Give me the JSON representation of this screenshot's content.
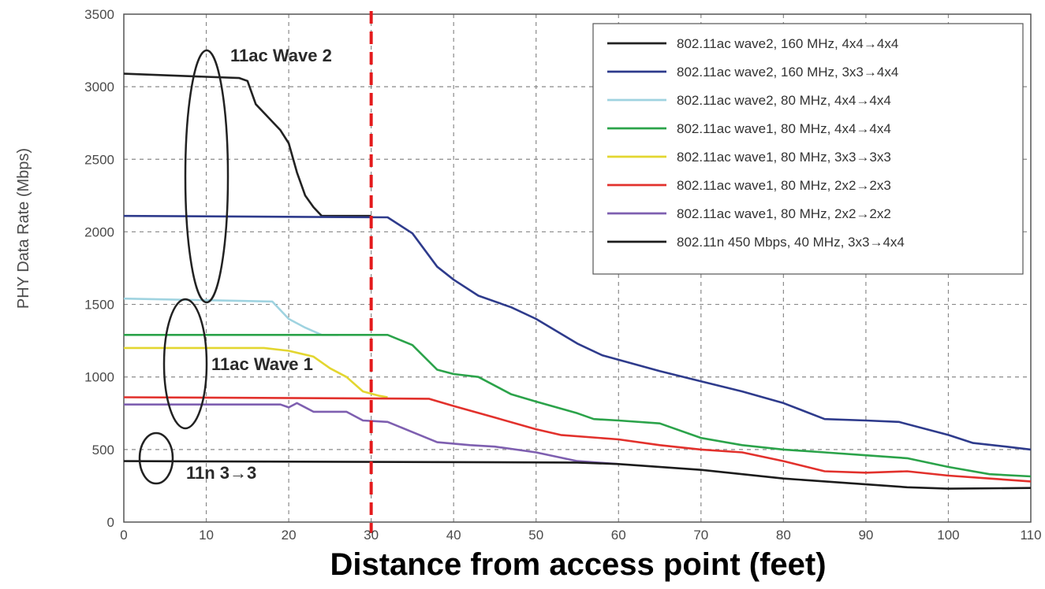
{
  "chart_data": {
    "type": "line",
    "title": "",
    "xlabel": "Distance from access point (feet)",
    "ylabel": "PHY Data Rate (Mbps)",
    "xlim": [
      0,
      110
    ],
    "ylim": [
      0,
      3500
    ],
    "xticks": [
      0,
      10,
      20,
      30,
      40,
      50,
      60,
      70,
      80,
      90,
      100,
      110
    ],
    "yticks": [
      0,
      500,
      1000,
      1500,
      2000,
      2500,
      3000,
      3500
    ],
    "grid": true,
    "legend_position": "top-right",
    "series": [
      {
        "name": "802.11ac wave2, 160 MHz, 4x4→4x4",
        "color": "#222222",
        "points": [
          [
            0,
            3090
          ],
          [
            14,
            3060
          ],
          [
            15,
            3040
          ],
          [
            16,
            2880
          ],
          [
            18,
            2760
          ],
          [
            19,
            2700
          ],
          [
            20,
            2610
          ],
          [
            21,
            2410
          ],
          [
            22,
            2250
          ],
          [
            23,
            2170
          ],
          [
            24,
            2110
          ],
          [
            30,
            2110
          ]
        ]
      },
      {
        "name": "802.11ac wave2, 160 MHz, 3x3→4x4",
        "color": "#2e3b8c",
        "points": [
          [
            0,
            2110
          ],
          [
            32,
            2100
          ],
          [
            35,
            1990
          ],
          [
            38,
            1760
          ],
          [
            40,
            1670
          ],
          [
            43,
            1560
          ],
          [
            47,
            1480
          ],
          [
            50,
            1400
          ],
          [
            55,
            1230
          ],
          [
            58,
            1150
          ],
          [
            65,
            1040
          ],
          [
            70,
            970
          ],
          [
            75,
            900
          ],
          [
            80,
            820
          ],
          [
            85,
            710
          ],
          [
            90,
            700
          ],
          [
            94,
            690
          ],
          [
            100,
            600
          ],
          [
            103,
            545
          ],
          [
            107,
            520
          ],
          [
            110,
            500
          ]
        ]
      },
      {
        "name": "802.11ac wave2, 80 MHz, 4x4→4x4",
        "color": "#9fd3e0",
        "points": [
          [
            0,
            1540
          ],
          [
            18,
            1520
          ],
          [
            20,
            1400
          ],
          [
            22,
            1340
          ],
          [
            24,
            1290
          ],
          [
            26,
            1290
          ]
        ]
      },
      {
        "name": "802.11ac wave1, 80 MHz, 4x4→4x4",
        "color": "#2ba34a",
        "points": [
          [
            0,
            1290
          ],
          [
            32,
            1290
          ],
          [
            35,
            1220
          ],
          [
            38,
            1050
          ],
          [
            40,
            1020
          ],
          [
            43,
            1000
          ],
          [
            47,
            880
          ],
          [
            50,
            830
          ],
          [
            55,
            750
          ],
          [
            57,
            710
          ],
          [
            60,
            700
          ],
          [
            65,
            680
          ],
          [
            70,
            580
          ],
          [
            75,
            530
          ],
          [
            80,
            500
          ],
          [
            85,
            480
          ],
          [
            90,
            460
          ],
          [
            95,
            440
          ],
          [
            100,
            380
          ],
          [
            105,
            330
          ],
          [
            110,
            315
          ]
        ]
      },
      {
        "name": "802.11ac wave1, 80 MHz, 3x3→3x3",
        "color": "#e3d630",
        "points": [
          [
            0,
            1200
          ],
          [
            17,
            1200
          ],
          [
            20,
            1180
          ],
          [
            23,
            1140
          ],
          [
            25,
            1060
          ],
          [
            27,
            1000
          ],
          [
            29,
            900
          ],
          [
            31,
            870
          ],
          [
            32,
            860
          ]
        ]
      },
      {
        "name": "802.11ac wave1, 80 MHz, 2x2→2x3",
        "color": "#e2312c",
        "points": [
          [
            0,
            860
          ],
          [
            37,
            850
          ],
          [
            40,
            800
          ],
          [
            45,
            720
          ],
          [
            50,
            640
          ],
          [
            53,
            600
          ],
          [
            60,
            570
          ],
          [
            65,
            530
          ],
          [
            70,
            500
          ],
          [
            75,
            480
          ],
          [
            80,
            420
          ],
          [
            85,
            350
          ],
          [
            90,
            340
          ],
          [
            95,
            350
          ],
          [
            100,
            320
          ],
          [
            105,
            300
          ],
          [
            110,
            280
          ]
        ]
      },
      {
        "name": "802.11ac wave1, 80 MHz, 2x2→2x2",
        "color": "#7e5fb0",
        "points": [
          [
            0,
            810
          ],
          [
            19,
            810
          ],
          [
            20,
            790
          ],
          [
            21,
            820
          ],
          [
            23,
            760
          ],
          [
            27,
            760
          ],
          [
            29,
            700
          ],
          [
            32,
            690
          ],
          [
            35,
            620
          ],
          [
            38,
            550
          ],
          [
            42,
            530
          ],
          [
            45,
            520
          ],
          [
            50,
            480
          ],
          [
            55,
            420
          ],
          [
            60,
            400
          ]
        ]
      },
      {
        "name": "802.11n 450 Mbps, 40 MHz, 3x3→4x4",
        "color": "#1c1c1c",
        "points": [
          [
            0,
            420
          ],
          [
            55,
            410
          ],
          [
            60,
            400
          ],
          [
            70,
            360
          ],
          [
            80,
            300
          ],
          [
            90,
            260
          ],
          [
            95,
            240
          ],
          [
            100,
            230
          ],
          [
            110,
            235
          ]
        ]
      }
    ],
    "annotations": {
      "wave2_label": "11ac Wave 2",
      "wave1_label": "11ac Wave 1",
      "n_label": "11n 3→3"
    },
    "reference_line": {
      "x": 30,
      "color": "#e41a1c",
      "style": "dashed"
    }
  }
}
